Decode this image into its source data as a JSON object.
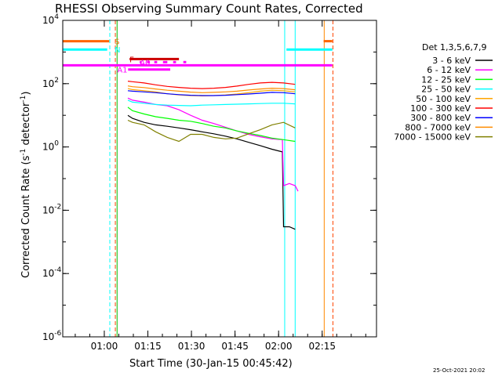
{
  "chart_data": {
    "type": "line",
    "title": "RHESSI Observing Summary Count Rates, Corrected",
    "xlabel": "Start Time (30-Jan-15 00:45:42)",
    "ylabel": "Corrected Count Rate (s⁻¹ detector⁻¹)",
    "ylabel_parts": {
      "main": "Corrected Count Rate (s",
      "sup1": "-1",
      "mid": " detector",
      "sup2": "-1",
      "end": ")"
    },
    "x_range_min": [
      0,
      108
    ],
    "y_range": [
      1e-06,
      10000
    ],
    "y_scale": "log",
    "x_ticks": [
      {
        "min": 14.3,
        "label": "01:00"
      },
      {
        "min": 29.3,
        "label": "01:15"
      },
      {
        "min": 44.3,
        "label": "01:30"
      },
      {
        "min": 59.3,
        "label": "01:45"
      },
      {
        "min": 74.3,
        "label": "02:00"
      },
      {
        "min": 89.3,
        "label": "02:15"
      }
    ],
    "y_ticks": [
      {
        "exp": -6,
        "base": "10",
        "sup": "-6"
      },
      {
        "exp": -4,
        "base": "10",
        "sup": "-4"
      },
      {
        "exp": -2,
        "base": "10",
        "sup": "-2"
      },
      {
        "exp": 0,
        "base": "10",
        "sup": "0"
      },
      {
        "exp": 2,
        "base": "10",
        "sup": "2"
      },
      {
        "exp": 4,
        "base": "10",
        "sup": "4"
      }
    ],
    "legend_title": "Det 1,3,5,6,7,9",
    "legend_position": "right",
    "series": [
      {
        "name": "3 - 6 keV",
        "color": "#000000",
        "points": [
          [
            22.4,
            10
          ],
          [
            24,
            8
          ],
          [
            28,
            6
          ],
          [
            32,
            5
          ],
          [
            36,
            4.5
          ],
          [
            40,
            4
          ],
          [
            44,
            3.5
          ],
          [
            48,
            3
          ],
          [
            52,
            2.6
          ],
          [
            56,
            2.2
          ],
          [
            60,
            1.8
          ],
          [
            64,
            1.4
          ],
          [
            68,
            1.1
          ],
          [
            72,
            0.85
          ],
          [
            75.6,
            0.7
          ],
          [
            76,
            0.003
          ],
          [
            78,
            0.003
          ],
          [
            80,
            0.0025
          ]
        ]
      },
      {
        "name": "6 - 12 keV",
        "color": "#ff00ff",
        "points": [
          [
            22.4,
            35
          ],
          [
            24,
            30
          ],
          [
            28,
            26
          ],
          [
            32,
            22
          ],
          [
            36,
            20
          ],
          [
            40,
            15
          ],
          [
            44,
            10
          ],
          [
            48,
            7
          ],
          [
            52,
            5.5
          ],
          [
            56,
            4.2
          ],
          [
            60,
            3.2
          ],
          [
            64,
            2.5
          ],
          [
            68,
            2.1
          ],
          [
            72,
            1.8
          ],
          [
            75.6,
            1.7
          ],
          [
            76,
            0.06
          ],
          [
            78,
            0.07
          ],
          [
            80,
            0.06
          ],
          [
            81,
            0.04
          ]
        ]
      },
      {
        "name": "12 - 25 keV",
        "color": "#00ff00",
        "points": [
          [
            22.4,
            18
          ],
          [
            24,
            14
          ],
          [
            28,
            11
          ],
          [
            32,
            9
          ],
          [
            36,
            8
          ],
          [
            40,
            7
          ],
          [
            44,
            6.5
          ],
          [
            48,
            5.5
          ],
          [
            52,
            4.5
          ],
          [
            56,
            4
          ],
          [
            60,
            3.2
          ],
          [
            64,
            2.7
          ],
          [
            68,
            2.3
          ],
          [
            72,
            1.9
          ],
          [
            76,
            1.7
          ],
          [
            80,
            1.5
          ]
        ]
      },
      {
        "name": "25 - 50 keV",
        "color": "#00ffff",
        "points": [
          [
            22.4,
            30
          ],
          [
            24,
            26
          ],
          [
            28,
            24
          ],
          [
            32,
            22
          ],
          [
            36,
            21
          ],
          [
            40,
            20.5
          ],
          [
            44,
            20
          ],
          [
            48,
            21
          ],
          [
            52,
            21.5
          ],
          [
            56,
            22
          ],
          [
            60,
            22.5
          ],
          [
            64,
            23
          ],
          [
            68,
            23.5
          ],
          [
            72,
            24
          ],
          [
            76,
            24
          ],
          [
            80,
            23
          ]
        ]
      },
      {
        "name": "50 - 100 keV",
        "color": "#ffa500",
        "points": [
          [
            22.4,
            70
          ],
          [
            24,
            65
          ],
          [
            28,
            60
          ],
          [
            32,
            55
          ],
          [
            36,
            48
          ],
          [
            40,
            44
          ],
          [
            44,
            42
          ],
          [
            48,
            41
          ],
          [
            52,
            42
          ],
          [
            56,
            44
          ],
          [
            60,
            47
          ],
          [
            64,
            52
          ],
          [
            68,
            58
          ],
          [
            72,
            62
          ],
          [
            76,
            60
          ],
          [
            80,
            55
          ]
        ]
      },
      {
        "name": "100 - 300 keV",
        "color": "#ff0000",
        "points": [
          [
            22.4,
            120
          ],
          [
            24,
            115
          ],
          [
            28,
            105
          ],
          [
            32,
            92
          ],
          [
            36,
            82
          ],
          [
            40,
            76
          ],
          [
            44,
            72
          ],
          [
            48,
            70
          ],
          [
            52,
            72
          ],
          [
            56,
            76
          ],
          [
            60,
            84
          ],
          [
            64,
            95
          ],
          [
            68,
            105
          ],
          [
            72,
            110
          ],
          [
            76,
            105
          ],
          [
            80,
            95
          ]
        ]
      },
      {
        "name": "300 - 800 keV",
        "color": "#0000ff",
        "points": [
          [
            22.4,
            60
          ],
          [
            24,
            58
          ],
          [
            28,
            55
          ],
          [
            32,
            52
          ],
          [
            36,
            48
          ],
          [
            40,
            45
          ],
          [
            44,
            43
          ],
          [
            48,
            42
          ],
          [
            52,
            42
          ],
          [
            56,
            43
          ],
          [
            60,
            45
          ],
          [
            64,
            47
          ],
          [
            68,
            50
          ],
          [
            72,
            53
          ],
          [
            76,
            52
          ],
          [
            80,
            48
          ]
        ]
      },
      {
        "name": "800 - 7000 keV",
        "color": "#ff8c00",
        "points": [
          [
            22.4,
            85
          ],
          [
            24,
            80
          ],
          [
            28,
            75
          ],
          [
            32,
            68
          ],
          [
            36,
            62
          ],
          [
            40,
            58
          ],
          [
            44,
            54
          ],
          [
            48,
            52
          ],
          [
            52,
            53
          ],
          [
            56,
            55
          ],
          [
            60,
            58
          ],
          [
            64,
            63
          ],
          [
            68,
            68
          ],
          [
            72,
            72
          ],
          [
            76,
            70
          ],
          [
            80,
            64
          ]
        ]
      },
      {
        "name": "7000 - 15000 keV",
        "color": "#808000",
        "points": [
          [
            22.4,
            7
          ],
          [
            24,
            6
          ],
          [
            28,
            5
          ],
          [
            32,
            3
          ],
          [
            36,
            2
          ],
          [
            40,
            1.5
          ],
          [
            44,
            2.5
          ],
          [
            48,
            2.5
          ],
          [
            52,
            2
          ],
          [
            56,
            1.8
          ],
          [
            60,
            1.9
          ],
          [
            64,
            2.6
          ],
          [
            68,
            3.5
          ],
          [
            72,
            5
          ],
          [
            76,
            6
          ],
          [
            80,
            4
          ]
        ]
      }
    ],
    "flag_bars": [
      {
        "label": "S",
        "color": "#ff6600",
        "y": 2200,
        "segments": [
          [
            0,
            16
          ],
          [
            89.8,
            92.8
          ]
        ]
      },
      {
        "label": "N",
        "color": "#00ffff",
        "y": 1200,
        "segments": [
          [
            0,
            15.3
          ],
          [
            77,
            92.8
          ]
        ]
      },
      {
        "label": "F",
        "color": "#cc0000",
        "y": 600,
        "segments": [
          [
            23,
            40
          ]
        ]
      },
      {
        "label": "A0",
        "color": "#ff00ff",
        "y": 480,
        "segments": [
          [
            26.5,
            27
          ],
          [
            29,
            30
          ],
          [
            31.5,
            32.5
          ],
          [
            34.5,
            36
          ],
          [
            38,
            39
          ],
          [
            41.5,
            42.5
          ]
        ]
      },
      {
        "label": "A1",
        "color": "#ff00ff",
        "y": 280,
        "segments": [
          [
            22.5,
            37
          ]
        ]
      },
      {
        "label": "",
        "color": "#ff00ff",
        "y": 380,
        "segments": [
          [
            0,
            92.8
          ]
        ]
      }
    ],
    "vertical_markers": [
      {
        "min": 0,
        "color": "#00ffff",
        "style": "solid"
      },
      {
        "min": 16.2,
        "color": "#00ffff",
        "style": "dashed"
      },
      {
        "min": 18.1,
        "color": "#ff4400",
        "style": "dashed"
      },
      {
        "min": 18.7,
        "color": "#00bb00",
        "style": "solid"
      },
      {
        "min": 76.4,
        "color": "#00ffff",
        "style": "solid"
      },
      {
        "min": 80,
        "color": "#00ffff",
        "style": "solid"
      },
      {
        "min": 90,
        "color": "#ff8800",
        "style": "solid"
      },
      {
        "min": 93,
        "color": "#ff4400",
        "style": "dashed"
      }
    ],
    "footer_date": "25-Oct-2021 20:02"
  }
}
